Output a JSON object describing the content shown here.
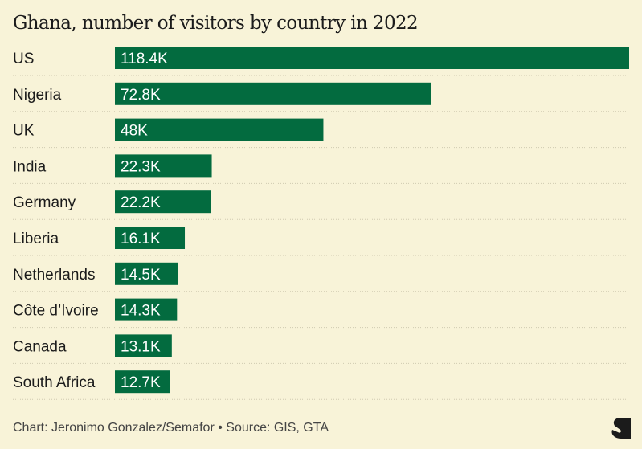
{
  "chart_data": {
    "type": "bar",
    "orientation": "horizontal",
    "title": "Ghana, number of visitors by country in 2022",
    "categories": [
      "US",
      "Nigeria",
      "UK",
      "India",
      "Germany",
      "Liberia",
      "Netherlands",
      "Côte d’Ivoire",
      "Canada",
      "South Africa"
    ],
    "values": [
      118.4,
      72.8,
      48,
      22.3,
      22.2,
      16.1,
      14.5,
      14.3,
      13.1,
      12.7
    ],
    "value_labels": [
      "118.4K",
      "72.8K",
      "48K",
      "22.3K",
      "22.2K",
      "16.1K",
      "14.5K",
      "14.3K",
      "13.1K",
      "12.7K"
    ],
    "unit": "thousands of visitors",
    "xlabel": "",
    "ylabel": "",
    "xlim": [
      0,
      118.4
    ],
    "grid": false,
    "bar_color": "#036b3f"
  },
  "footer": {
    "credit": "Chart: Jeronimo Gonzalez/Semafor • Source: GIS, GTA"
  },
  "colors": {
    "background": "#f8f3d8",
    "bar": "#036b3f",
    "text": "#1b1b1b"
  }
}
